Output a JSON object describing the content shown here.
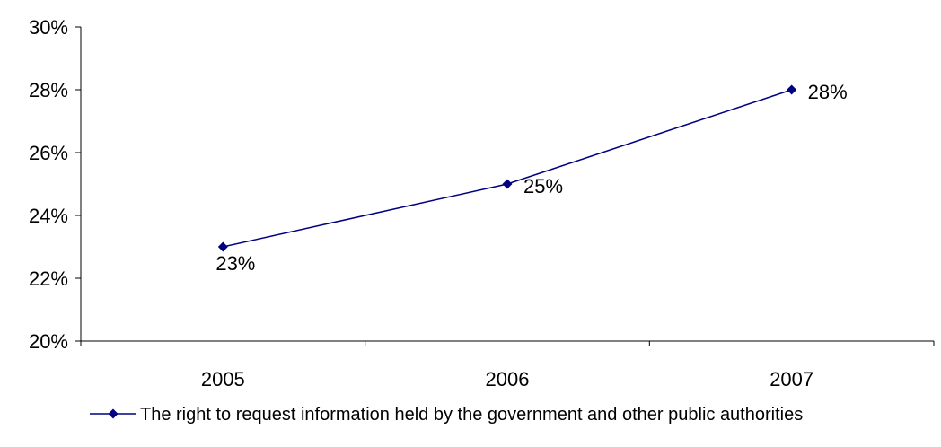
{
  "chart_data": {
    "type": "line",
    "categories": [
      "2005",
      "2006",
      "2007"
    ],
    "series": [
      {
        "name": "The right to request information held by the government and other public authorities",
        "values": [
          23,
          25,
          28
        ],
        "data_labels": [
          "23%",
          "25%",
          "28%"
        ],
        "color": "#000080",
        "marker": "diamond"
      }
    ],
    "ylim": [
      20,
      30
    ],
    "y_ticks": [
      "20%",
      "22%",
      "24%",
      "26%",
      "28%",
      "30%"
    ],
    "title": "",
    "xlabel": "",
    "ylabel": "",
    "grid": false,
    "legend_position": "bottom"
  }
}
